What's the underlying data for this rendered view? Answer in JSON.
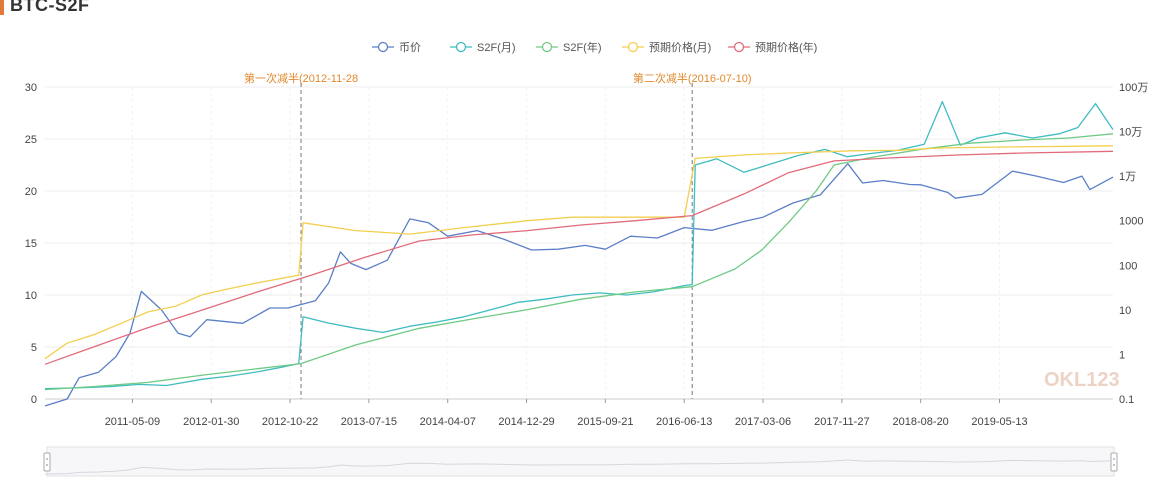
{
  "page": {
    "title": "BTC-S2F"
  },
  "watermark": "OKL123",
  "chart_data": {
    "type": "line",
    "title": "BTC-S2F",
    "legend_position": "top-center",
    "grid": true,
    "x_axis": {
      "ticks": [
        "2011-05-09",
        "2012-01-30",
        "2012-10-22",
        "2013-07-15",
        "2014-04-07",
        "2014-12-29",
        "2015-09-21",
        "2016-06-13",
        "2017-03-06",
        "2017-11-27",
        "2018-08-20",
        "2019-05-13"
      ],
      "range": [
        "2010-07-18",
        "2020-05-30"
      ]
    },
    "y_left": {
      "ticks": [
        0,
        5,
        10,
        15,
        20,
        25,
        30
      ],
      "ylim": [
        0,
        30
      ]
    },
    "y_right": {
      "scale": "log",
      "ticks": [
        "0.1",
        "1",
        "10",
        "100",
        "1000",
        "1万",
        "10万",
        "100万"
      ],
      "ylim": [
        0.1,
        1000000
      ]
    },
    "annotations": [
      {
        "label": "第一次减半(2012-11-28",
        "x": "2012-11-28"
      },
      {
        "label": "第二次减半(2016-07-10)",
        "x": "2016-07-10"
      }
    ],
    "series": [
      {
        "name": "币价",
        "axis": "right",
        "color": "#5b7fc7",
        "points": [
          [
            "2010-07-18",
            0.07
          ],
          [
            "2010-10-01",
            0.1
          ],
          [
            "2010-11-10",
            0.3
          ],
          [
            "2011-01-15",
            0.4
          ],
          [
            "2011-03-15",
            0.9
          ],
          [
            "2011-05-01",
            3
          ],
          [
            "2011-06-08",
            26
          ],
          [
            "2011-08-15",
            10
          ],
          [
            "2011-10-10",
            3
          ],
          [
            "2011-11-20",
            2.5
          ],
          [
            "2012-01-15",
            6
          ],
          [
            "2012-05-15",
            5
          ],
          [
            "2012-08-15",
            11
          ],
          [
            "2012-10-15",
            11
          ],
          [
            "2013-01-15",
            16
          ],
          [
            "2013-03-01",
            40
          ],
          [
            "2013-04-10",
            200
          ],
          [
            "2013-05-15",
            110
          ],
          [
            "2013-07-05",
            80
          ],
          [
            "2013-09-15",
            130
          ],
          [
            "2013-11-30",
            1100
          ],
          [
            "2014-02-01",
            900
          ],
          [
            "2014-04-07",
            450
          ],
          [
            "2014-07-15",
            600
          ],
          [
            "2014-10-15",
            380
          ],
          [
            "2015-01-15",
            220
          ],
          [
            "2015-04-15",
            230
          ],
          [
            "2015-07-15",
            280
          ],
          [
            "2015-09-21",
            230
          ],
          [
            "2015-12-15",
            450
          ],
          [
            "2016-03-15",
            410
          ],
          [
            "2016-06-13",
            700
          ],
          [
            "2016-09-15",
            610
          ],
          [
            "2016-12-31",
            960
          ],
          [
            "2017-03-06",
            1200
          ],
          [
            "2017-06-15",
            2500
          ],
          [
            "2017-09-15",
            3800
          ],
          [
            "2017-12-17",
            19000
          ],
          [
            "2018-02-05",
            7000
          ],
          [
            "2018-04-15",
            8000
          ],
          [
            "2018-07-15",
            6500
          ],
          [
            "2018-08-20",
            6400
          ],
          [
            "2018-11-20",
            4300
          ],
          [
            "2018-12-15",
            3200
          ],
          [
            "2019-03-15",
            3900
          ],
          [
            "2019-06-26",
            13000
          ],
          [
            "2019-09-15",
            10000
          ],
          [
            "2019-12-15",
            7200
          ],
          [
            "2020-02-15",
            10000
          ],
          [
            "2020-03-13",
            5000
          ],
          [
            "2020-05-30",
            9500
          ]
        ]
      },
      {
        "name": "S2F(月)",
        "axis": "left",
        "color": "#3fbcc0",
        "points": [
          [
            "2010-07-18",
            1.0
          ],
          [
            "2010-12-01",
            1.1
          ],
          [
            "2011-03-01",
            1.2
          ],
          [
            "2011-06-01",
            1.4
          ],
          [
            "2011-09-01",
            1.3
          ],
          [
            "2012-01-01",
            1.9
          ],
          [
            "2012-04-01",
            2.2
          ],
          [
            "2012-07-01",
            2.6
          ],
          [
            "2012-10-01",
            3.1
          ],
          [
            "2012-11-20",
            3.4
          ],
          [
            "2012-12-05",
            7.9
          ],
          [
            "2013-03-01",
            7.3
          ],
          [
            "2013-06-01",
            6.8
          ],
          [
            "2013-09-01",
            6.4
          ],
          [
            "2013-12-01",
            7.0
          ],
          [
            "2014-03-01",
            7.4
          ],
          [
            "2014-06-01",
            7.9
          ],
          [
            "2014-09-01",
            8.6
          ],
          [
            "2014-12-01",
            9.3
          ],
          [
            "2015-03-01",
            9.6
          ],
          [
            "2015-06-01",
            10.0
          ],
          [
            "2015-09-01",
            10.2
          ],
          [
            "2015-12-01",
            10.0
          ],
          [
            "2016-03-01",
            10.3
          ],
          [
            "2016-06-13",
            10.9
          ],
          [
            "2016-07-10",
            11.0
          ],
          [
            "2016-07-20",
            22.5
          ],
          [
            "2016-10-01",
            23.1
          ],
          [
            "2017-01-01",
            21.8
          ],
          [
            "2017-04-01",
            22.6
          ],
          [
            "2017-07-01",
            23.4
          ],
          [
            "2017-10-01",
            24.0
          ],
          [
            "2017-12-15",
            23.3
          ],
          [
            "2018-03-01",
            23.6
          ],
          [
            "2018-06-01",
            23.9
          ],
          [
            "2018-09-01",
            24.5
          ],
          [
            "2018-11-01",
            28.6
          ],
          [
            "2019-01-01",
            24.4
          ],
          [
            "2019-03-01",
            25.1
          ],
          [
            "2019-06-01",
            25.6
          ],
          [
            "2019-09-01",
            25.1
          ],
          [
            "2019-12-01",
            25.5
          ],
          [
            "2020-02-01",
            26.1
          ],
          [
            "2020-04-01",
            28.4
          ],
          [
            "2020-05-30",
            25.9
          ]
        ]
      },
      {
        "name": "S2F(年)",
        "axis": "left",
        "color": "#6fca84",
        "points": [
          [
            "2010-07-18",
            0.9
          ],
          [
            "2011-01-01",
            1.2
          ],
          [
            "2011-07-01",
            1.6
          ],
          [
            "2012-01-01",
            2.3
          ],
          [
            "2012-07-01",
            2.9
          ],
          [
            "2012-11-28",
            3.4
          ],
          [
            "2013-06-01",
            5.2
          ],
          [
            "2014-01-01",
            6.8
          ],
          [
            "2014-07-01",
            7.7
          ],
          [
            "2015-01-01",
            8.6
          ],
          [
            "2015-07-01",
            9.6
          ],
          [
            "2016-01-01",
            10.3
          ],
          [
            "2016-07-10",
            10.8
          ],
          [
            "2016-12-01",
            12.5
          ],
          [
            "2017-03-01",
            14.3
          ],
          [
            "2017-06-01",
            17.0
          ],
          [
            "2017-09-01",
            20.0
          ],
          [
            "2017-11-01",
            22.5
          ],
          [
            "2018-03-01",
            23.2
          ],
          [
            "2018-08-20",
            24.0
          ],
          [
            "2019-02-01",
            24.6
          ],
          [
            "2019-08-01",
            24.9
          ],
          [
            "2020-01-01",
            25.1
          ],
          [
            "2020-05-30",
            25.5
          ]
        ]
      },
      {
        "name": "预期价格(月)",
        "axis": "right",
        "color": "#f2cf4e",
        "points": [
          [
            "2010-07-18",
            0.8
          ],
          [
            "2010-10-01",
            1.8
          ],
          [
            "2011-01-01",
            2.8
          ],
          [
            "2011-04-01",
            5
          ],
          [
            "2011-07-01",
            9
          ],
          [
            "2011-10-01",
            12
          ],
          [
            "2012-01-01",
            22
          ],
          [
            "2012-04-01",
            30
          ],
          [
            "2012-07-01",
            40
          ],
          [
            "2012-11-20",
            60
          ],
          [
            "2012-12-05",
            900
          ],
          [
            "2013-06-01",
            600
          ],
          [
            "2013-12-01",
            500
          ],
          [
            "2014-06-01",
            700
          ],
          [
            "2015-01-01",
            1000
          ],
          [
            "2015-06-01",
            1200
          ],
          [
            "2015-12-01",
            1200
          ],
          [
            "2016-06-13",
            1200
          ],
          [
            "2016-07-20",
            25000
          ],
          [
            "2017-01-01",
            30000
          ],
          [
            "2017-06-01",
            33000
          ],
          [
            "2018-01-01",
            37000
          ],
          [
            "2018-06-01",
            38000
          ],
          [
            "2018-11-01",
            43000
          ],
          [
            "2019-06-01",
            45000
          ],
          [
            "2020-05-30",
            48000
          ]
        ]
      },
      {
        "name": "预期价格(年)",
        "axis": "right",
        "color": "#e26b7b",
        "points": [
          [
            "2010-07-18",
            0.6
          ],
          [
            "2011-01-01",
            1.5
          ],
          [
            "2011-07-01",
            4
          ],
          [
            "2012-01-01",
            10
          ],
          [
            "2012-07-01",
            25
          ],
          [
            "2013-01-01",
            60
          ],
          [
            "2013-07-01",
            150
          ],
          [
            "2014-01-01",
            350
          ],
          [
            "2014-07-01",
            480
          ],
          [
            "2015-01-01",
            600
          ],
          [
            "2015-07-01",
            800
          ],
          [
            "2016-01-01",
            1000
          ],
          [
            "2016-07-10",
            1300
          ],
          [
            "2017-01-01",
            4000
          ],
          [
            "2017-06-01",
            12000
          ],
          [
            "2017-11-01",
            22000
          ],
          [
            "2018-06-01",
            26000
          ],
          [
            "2019-01-01",
            30000
          ],
          [
            "2019-08-01",
            33000
          ],
          [
            "2020-05-30",
            36000
          ]
        ]
      }
    ]
  }
}
